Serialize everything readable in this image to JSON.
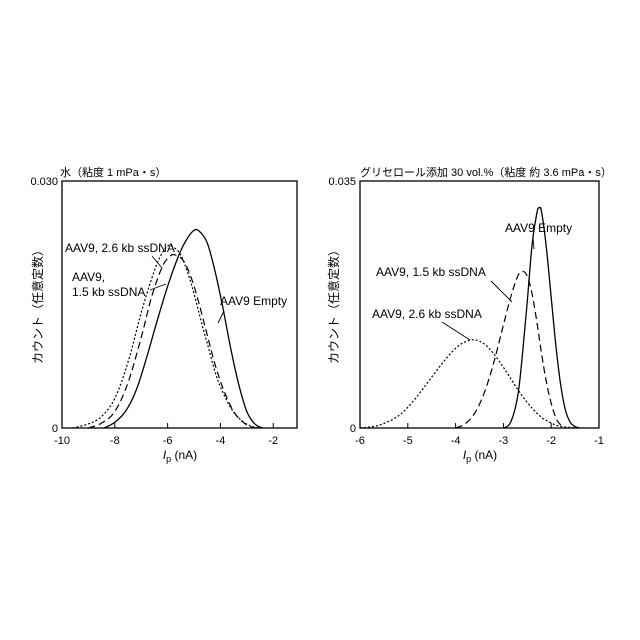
{
  "chart_data": [
    {
      "type": "line",
      "title": "水（粘度 1 mPa・s）",
      "xlabel_main": "I",
      "xlabel_sub": "p",
      "xlabel_unit": " (nA)",
      "ylabel": "カウント（任意定数）",
      "xlim": [
        -10,
        -1.1
      ],
      "ylim": [
        0,
        0.03
      ],
      "xticks": [
        -10,
        -8,
        -6,
        -4,
        -2
      ],
      "ytick_labels": [
        {
          "value": 0,
          "label": "0"
        },
        {
          "value": 0.03,
          "label": "0.030"
        }
      ],
      "grid": false,
      "series": [
        {
          "name": "AAV9, 2.6 kb ssDNA",
          "style": "dotted",
          "x": [
            -9.6,
            -9.0,
            -8.5,
            -8.0,
            -7.5,
            -7.0,
            -6.6,
            -6.3,
            -6.0,
            -5.8,
            -5.5,
            -5.2,
            -5.0,
            -4.7,
            -4.5,
            -4.2,
            -4.0,
            -3.6,
            -3.2,
            -2.8,
            -2.5
          ],
          "y": [
            0.0,
            0.0005,
            0.0014,
            0.0036,
            0.008,
            0.014,
            0.0182,
            0.0207,
            0.0221,
            0.022,
            0.021,
            0.0185,
            0.0163,
            0.0126,
            0.0103,
            0.0068,
            0.005,
            0.0024,
            0.0009,
            0.0002,
            0.0
          ]
        },
        {
          "name": "AAV9, 1.5 kb ssDNA",
          "style": "dashed",
          "x": [
            -9.0,
            -8.5,
            -8.0,
            -7.5,
            -7.0,
            -6.6,
            -6.2,
            -5.9,
            -5.7,
            -5.4,
            -5.1,
            -4.8,
            -4.5,
            -4.2,
            -3.9,
            -3.5,
            -3.1,
            -2.8,
            -2.6
          ],
          "y": [
            0.0,
            0.0006,
            0.002,
            0.0055,
            0.011,
            0.016,
            0.0196,
            0.0209,
            0.021,
            0.0203,
            0.0182,
            0.015,
            0.0113,
            0.0077,
            0.0048,
            0.002,
            0.0006,
            0.0001,
            0.0
          ]
        },
        {
          "name": "AAV9 Empty",
          "style": "solid",
          "x": [
            -8.4,
            -8.0,
            -7.6,
            -7.2,
            -6.8,
            -6.4,
            -6.0,
            -5.6,
            -5.3,
            -5.0,
            -4.8,
            -4.5,
            -4.2,
            -3.9,
            -3.6,
            -3.3,
            -3.0,
            -2.7,
            -2.4
          ],
          "y": [
            0.0,
            0.0007,
            0.002,
            0.0045,
            0.0085,
            0.013,
            0.0172,
            0.0208,
            0.0228,
            0.024,
            0.0239,
            0.0225,
            0.019,
            0.0145,
            0.0095,
            0.0052,
            0.002,
            0.0005,
            0.0
          ]
        }
      ],
      "annotations": [
        {
          "text": "AAV9, 2.6 kb ssDNA"
        },
        {
          "text": "AAV9,"
        },
        {
          "text": "1.5 kb ssDNA"
        },
        {
          "text": "AAV9 Empty"
        }
      ]
    },
    {
      "type": "line",
      "title": "グリセロール添加 30 vol.%（粘度 約 3.6 mPa・s）",
      "xlabel_main": "I",
      "xlabel_sub": "p",
      "xlabel_unit": " (nA)",
      "ylabel": "カウント（任意定数）",
      "xlim": [
        -6,
        -1
      ],
      "ylim": [
        0,
        0.035
      ],
      "xticks": [
        -6,
        -5,
        -4,
        -3,
        -2,
        -1
      ],
      "ytick_labels": [
        {
          "value": 0,
          "label": "0"
        },
        {
          "value": 0.035,
          "label": "0.035"
        }
      ],
      "grid": false,
      "series": [
        {
          "name": "AAV9, 2.6 kb ssDNA",
          "style": "dotted",
          "x": [
            -6.0,
            -5.6,
            -5.2,
            -4.9,
            -4.6,
            -4.3,
            -4.0,
            -3.8,
            -3.6,
            -3.4,
            -3.2,
            -3.0,
            -2.8,
            -2.6,
            -2.4,
            -2.2,
            -2.0,
            -1.8,
            -1.6,
            -1.5
          ],
          "y": [
            0.0,
            0.0004,
            0.0017,
            0.0037,
            0.0063,
            0.009,
            0.0113,
            0.0122,
            0.0125,
            0.0119,
            0.0105,
            0.0086,
            0.0065,
            0.0045,
            0.0028,
            0.0015,
            0.0007,
            0.0002,
            0.0001,
            0.0
          ]
        },
        {
          "name": "AAV9, 1.5 kb ssDNA",
          "style": "dashed",
          "x": [
            -4.0,
            -3.8,
            -3.6,
            -3.4,
            -3.2,
            -3.0,
            -2.85,
            -2.7,
            -2.6,
            -2.5,
            -2.4,
            -2.3,
            -2.2,
            -2.1,
            -2.0,
            -1.9,
            -1.8,
            -1.7
          ],
          "y": [
            0.0,
            0.0006,
            0.0021,
            0.005,
            0.0093,
            0.0146,
            0.0185,
            0.0215,
            0.0222,
            0.0215,
            0.019,
            0.015,
            0.0105,
            0.0065,
            0.0035,
            0.0014,
            0.0004,
            0.0
          ]
        },
        {
          "name": "AAV9 Empty",
          "style": "solid",
          "x": [
            -3.0,
            -2.85,
            -2.7,
            -2.6,
            -2.5,
            -2.4,
            -2.3,
            -2.25,
            -2.2,
            -2.1,
            -2.0,
            -1.9,
            -1.8,
            -1.7,
            -1.6,
            -1.5,
            -1.4
          ],
          "y": [
            0.0,
            0.0008,
            0.0045,
            0.0105,
            0.018,
            0.026,
            0.0305,
            0.0312,
            0.0306,
            0.0255,
            0.0185,
            0.0115,
            0.006,
            0.0025,
            0.0008,
            0.0002,
            0.0
          ]
        }
      ],
      "annotations": [
        {
          "text": "AAV9 Empty"
        },
        {
          "text": "AAV9, 1.5 kb ssDNA"
        },
        {
          "text": "AAV9, 2.6 kb ssDNA"
        }
      ]
    }
  ]
}
